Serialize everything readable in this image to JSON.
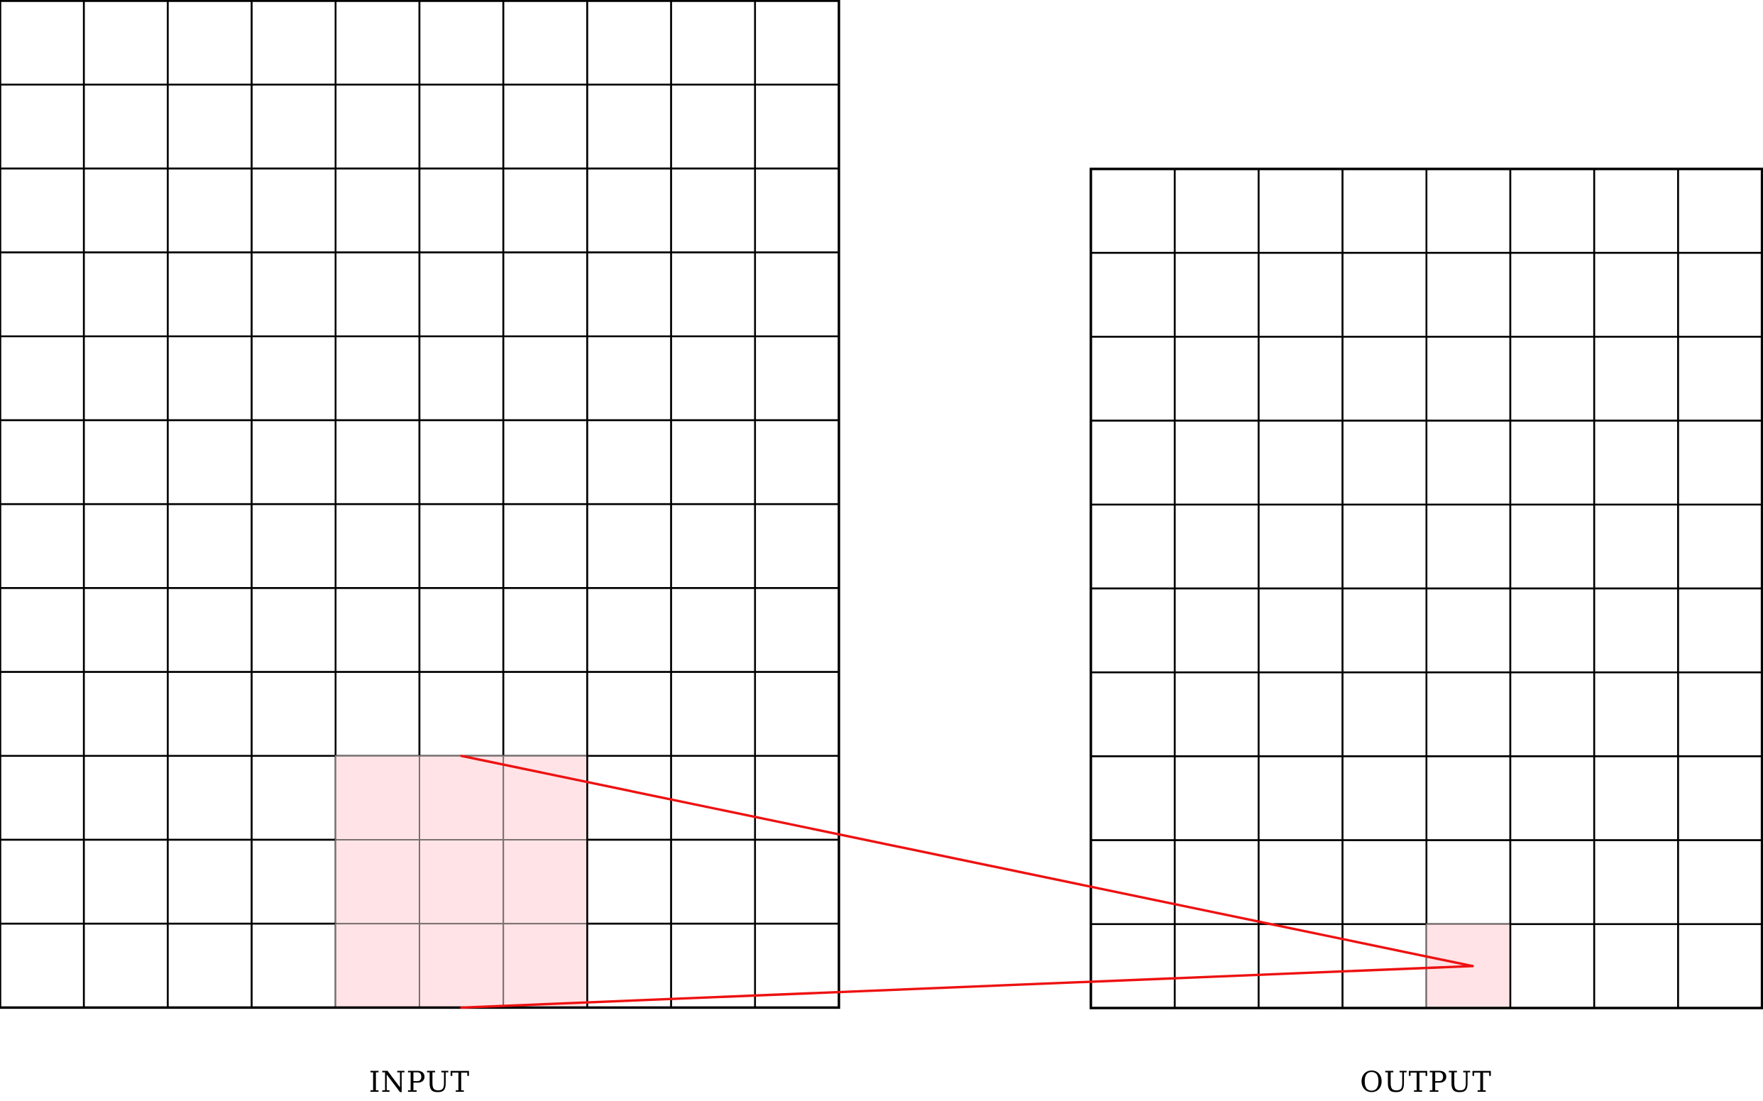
{
  "input_grid": {
    "label": "INPUT",
    "rows": 12,
    "cols": 10,
    "highlight": {
      "row_start": 9,
      "row_end": 11,
      "col_start": 4,
      "col_end": 6
    }
  },
  "output_grid": {
    "label": "OUTPUT",
    "rows": 10,
    "cols": 8,
    "highlight": {
      "row": 9,
      "col": 4
    }
  },
  "colors": {
    "highlight_fill": "#ffe3e6",
    "connector": "#ee1111",
    "grid_line": "#000000"
  }
}
